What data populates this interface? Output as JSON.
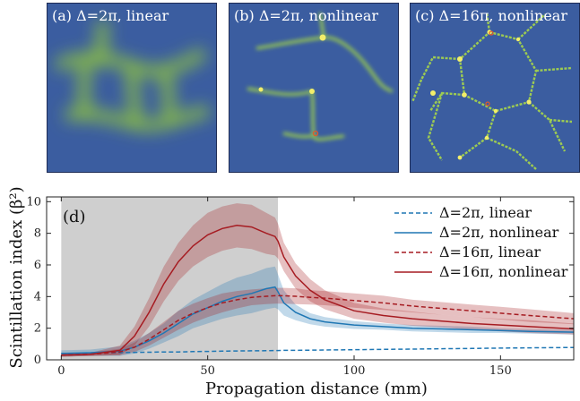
{
  "panels": [
    {
      "label": "(a) Δ=2π, linear"
    },
    {
      "label": "(b) Δ=2π, nonlinear"
    },
    {
      "label": "(c) Δ=16π, nonlinear"
    }
  ],
  "colors": {
    "panel_background": "#3b5da0",
    "pattern_green": "#a8d84a",
    "hot_spot": "#f3ee6a",
    "shaded_region": "#cfcfcf",
    "blue_series": "#1f77b4",
    "red_series": "#a61c22"
  },
  "chart_data": {
    "type": "line",
    "panel_label": "(d)",
    "xlabel": "Propagation distance (mm)",
    "ylabel": "Scintillation index (β²)",
    "xlim": [
      -5,
      175
    ],
    "ylim": [
      0,
      10.3
    ],
    "xticks": [
      0,
      50,
      100,
      150
    ],
    "yticks": [
      0,
      2,
      4,
      6,
      8,
      10
    ],
    "shaded_x_range": [
      0,
      74
    ],
    "legend_position": "top-right",
    "grid": false,
    "x": [
      0,
      10,
      20,
      25,
      30,
      35,
      40,
      45,
      50,
      55,
      60,
      65,
      70,
      73,
      74,
      76,
      80,
      85,
      90,
      100,
      110,
      120,
      130,
      140,
      150,
      160,
      175
    ],
    "series": [
      {
        "name": "Δ=2π, linear",
        "style": "dashed",
        "color": "#1f77b4",
        "values": [
          0.4,
          0.42,
          0.45,
          0.47,
          0.48,
          0.5,
          0.5,
          0.52,
          0.53,
          0.55,
          0.56,
          0.57,
          0.58,
          0.59,
          0.59,
          0.6,
          0.6,
          0.61,
          0.62,
          0.64,
          0.66,
          0.68,
          0.7,
          0.72,
          0.74,
          0.76,
          0.78
        ],
        "band": null
      },
      {
        "name": "Δ=2π, nonlinear",
        "style": "solid",
        "color": "#1f77b4",
        "values": [
          0.4,
          0.45,
          0.55,
          0.8,
          1.2,
          1.7,
          2.3,
          2.9,
          3.3,
          3.7,
          4.0,
          4.2,
          4.5,
          4.6,
          4.3,
          3.6,
          3.0,
          2.6,
          2.4,
          2.2,
          2.1,
          2.0,
          1.95,
          1.9,
          1.85,
          1.8,
          1.75
        ],
        "band": [
          0.2,
          0.2,
          0.3,
          0.4,
          0.5,
          0.6,
          0.8,
          0.9,
          1.0,
          1.1,
          1.2,
          1.25,
          1.3,
          1.3,
          1.1,
          0.8,
          0.5,
          0.35,
          0.3,
          0.25,
          0.2,
          0.2,
          0.2,
          0.2,
          0.15,
          0.15,
          0.15
        ]
      },
      {
        "name": "Δ=16π, linear",
        "style": "dashed",
        "color": "#a61c22",
        "values": [
          0.3,
          0.35,
          0.5,
          0.8,
          1.3,
          1.9,
          2.5,
          2.95,
          3.3,
          3.6,
          3.8,
          3.95,
          4.02,
          4.05,
          4.05,
          4.05,
          4.02,
          3.95,
          3.9,
          3.75,
          3.6,
          3.4,
          3.25,
          3.1,
          2.95,
          2.8,
          2.6
        ],
        "band": [
          0.1,
          0.1,
          0.2,
          0.3,
          0.4,
          0.5,
          0.6,
          0.6,
          0.6,
          0.6,
          0.55,
          0.5,
          0.5,
          0.5,
          0.5,
          0.5,
          0.5,
          0.45,
          0.45,
          0.45,
          0.45,
          0.4,
          0.4,
          0.4,
          0.4,
          0.4,
          0.35
        ]
      },
      {
        "name": "Δ=16π, nonlinear",
        "style": "solid",
        "color": "#a61c22",
        "values": [
          0.3,
          0.35,
          0.6,
          1.5,
          3.0,
          4.8,
          6.2,
          7.2,
          7.9,
          8.3,
          8.5,
          8.4,
          8.0,
          7.8,
          7.5,
          6.5,
          5.3,
          4.4,
          3.8,
          3.1,
          2.8,
          2.6,
          2.45,
          2.3,
          2.2,
          2.1,
          1.95
        ],
        "band": [
          0.1,
          0.1,
          0.3,
          0.6,
          0.9,
          1.1,
          1.2,
          1.3,
          1.4,
          1.4,
          1.4,
          1.4,
          1.3,
          1.2,
          1.1,
          0.9,
          0.8,
          0.7,
          0.6,
          0.5,
          0.45,
          0.45,
          0.4,
          0.4,
          0.4,
          0.4,
          0.35
        ]
      }
    ]
  }
}
